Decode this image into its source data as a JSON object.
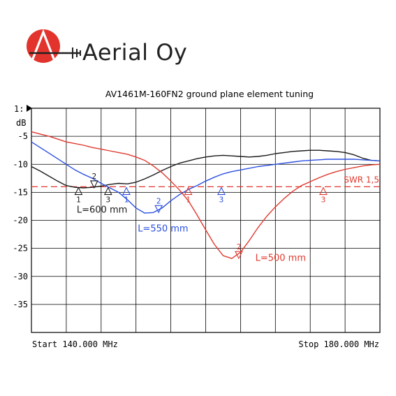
{
  "brand": {
    "name": "Aerial Oy"
  },
  "chart_data": {
    "type": "line",
    "title": "AV1461M-160FN2 ground plane element tuning",
    "trace_label": "1:",
    "unit_label": "dB",
    "y_ticks": [
      -5,
      -10,
      -15,
      -20,
      -25,
      -30,
      -35
    ],
    "ylim": [
      0,
      -40
    ],
    "xlim": [
      140,
      180
    ],
    "start_label": "Start 140.000 MHz",
    "stop_label": "Stop 180.000 MHz",
    "reference_line": {
      "label": "SWR 1,5",
      "value": -14,
      "color": "#e0392f"
    },
    "series": [
      {
        "name": "L=600 mm",
        "color": "#1a1a1a",
        "x": [
          140,
          141,
          142,
          143,
          144,
          145,
          146,
          147,
          148,
          149,
          150,
          151,
          152,
          153,
          154,
          155,
          156,
          157,
          158,
          159,
          160,
          161,
          162,
          163,
          164,
          165,
          166,
          167,
          168,
          169,
          170,
          171,
          172,
          173,
          174,
          175,
          176,
          177,
          178,
          179,
          180
        ],
        "values": [
          -10.4,
          -11.2,
          -12.1,
          -13.0,
          -13.8,
          -14.1,
          -14.2,
          -14.1,
          -13.9,
          -13.6,
          -13.4,
          -13.5,
          -13.2,
          -12.6,
          -11.9,
          -11.1,
          -10.4,
          -9.8,
          -9.4,
          -9.0,
          -8.7,
          -8.5,
          -8.4,
          -8.5,
          -8.6,
          -8.7,
          -8.6,
          -8.4,
          -8.1,
          -7.9,
          -7.7,
          -7.6,
          -7.5,
          -7.5,
          -7.6,
          -7.7,
          -7.9,
          -8.3,
          -8.9,
          -9.3,
          -9.4
        ]
      },
      {
        "name": "L=550 mm",
        "color": "#2b4fe0",
        "x": [
          140,
          141,
          142,
          143,
          144,
          145,
          146,
          147,
          148,
          149,
          150,
          151,
          152,
          153,
          154,
          155,
          156,
          157,
          158,
          159,
          160,
          161,
          162,
          163,
          164,
          165,
          166,
          167,
          168,
          169,
          170,
          171,
          172,
          173,
          174,
          175,
          176,
          177,
          178,
          179,
          180
        ],
        "values": [
          -6.0,
          -7.0,
          -8.0,
          -9.0,
          -10.0,
          -11.0,
          -11.8,
          -12.5,
          -13.4,
          -14.2,
          -15.0,
          -16.3,
          -17.8,
          -18.7,
          -18.6,
          -17.8,
          -16.5,
          -15.4,
          -14.5,
          -13.8,
          -13.0,
          -12.3,
          -11.7,
          -11.3,
          -11.0,
          -10.7,
          -10.4,
          -10.2,
          -10.0,
          -9.8,
          -9.6,
          -9.4,
          -9.3,
          -9.2,
          -9.1,
          -9.1,
          -9.1,
          -9.1,
          -9.2,
          -9.3,
          -9.4
        ]
      },
      {
        "name": "L=500 mm",
        "color": "#e0392f",
        "x": [
          140,
          141,
          142,
          143,
          144,
          145,
          146,
          147,
          148,
          149,
          150,
          151,
          152,
          153,
          154,
          155,
          156,
          157,
          158,
          159,
          160,
          161,
          162,
          163,
          164,
          165,
          166,
          167,
          168,
          169,
          170,
          171,
          172,
          173,
          174,
          175,
          176,
          177,
          178,
          179,
          180
        ],
        "values": [
          -4.2,
          -4.6,
          -5.0,
          -5.5,
          -6.0,
          -6.3,
          -6.6,
          -7.0,
          -7.3,
          -7.6,
          -7.9,
          -8.2,
          -8.7,
          -9.3,
          -10.3,
          -11.5,
          -13.0,
          -14.6,
          -16.5,
          -19.0,
          -21.7,
          -24.3,
          -26.3,
          -26.8,
          -25.7,
          -23.6,
          -21.3,
          -19.3,
          -17.6,
          -16.1,
          -14.8,
          -13.8,
          -13.1,
          -12.4,
          -11.8,
          -11.3,
          -10.9,
          -10.6,
          -10.3,
          -10.1,
          -10.0
        ]
      }
    ],
    "series_labels": [
      {
        "text": "L=600 mm",
        "color": "#1a1a1a",
        "at": [
          145.2,
          -18.0
        ]
      },
      {
        "text": "L=550 mm",
        "color": "#2b4fe0",
        "at": [
          152.2,
          -21.4
        ]
      },
      {
        "text": "L=500 mm",
        "color": "#e0392f",
        "at": [
          165.7,
          -26.6
        ]
      }
    ],
    "markers": [
      {
        "series": 0,
        "label": "1",
        "x": 145.4,
        "y": -14.4,
        "dir": "up"
      },
      {
        "series": 0,
        "label": "2",
        "x": 147.2,
        "y": -14.2,
        "dir": "down"
      },
      {
        "series": 0,
        "label": "3",
        "x": 148.8,
        "y": -14.4,
        "dir": "up"
      },
      {
        "series": 1,
        "label": "1",
        "x": 150.9,
        "y": -14.4,
        "dir": "up"
      },
      {
        "series": 1,
        "label": "2",
        "x": 154.6,
        "y": -18.6,
        "dir": "down"
      },
      {
        "series": 1,
        "label": "3",
        "x": 161.8,
        "y": -14.4,
        "dir": "up"
      },
      {
        "series": 2,
        "label": "1",
        "x": 158.0,
        "y": -14.4,
        "dir": "up"
      },
      {
        "series": 2,
        "label": "2",
        "x": 163.8,
        "y": -26.8,
        "dir": "down"
      },
      {
        "series": 2,
        "label": "3",
        "x": 173.5,
        "y": -14.4,
        "dir": "up"
      }
    ]
  }
}
